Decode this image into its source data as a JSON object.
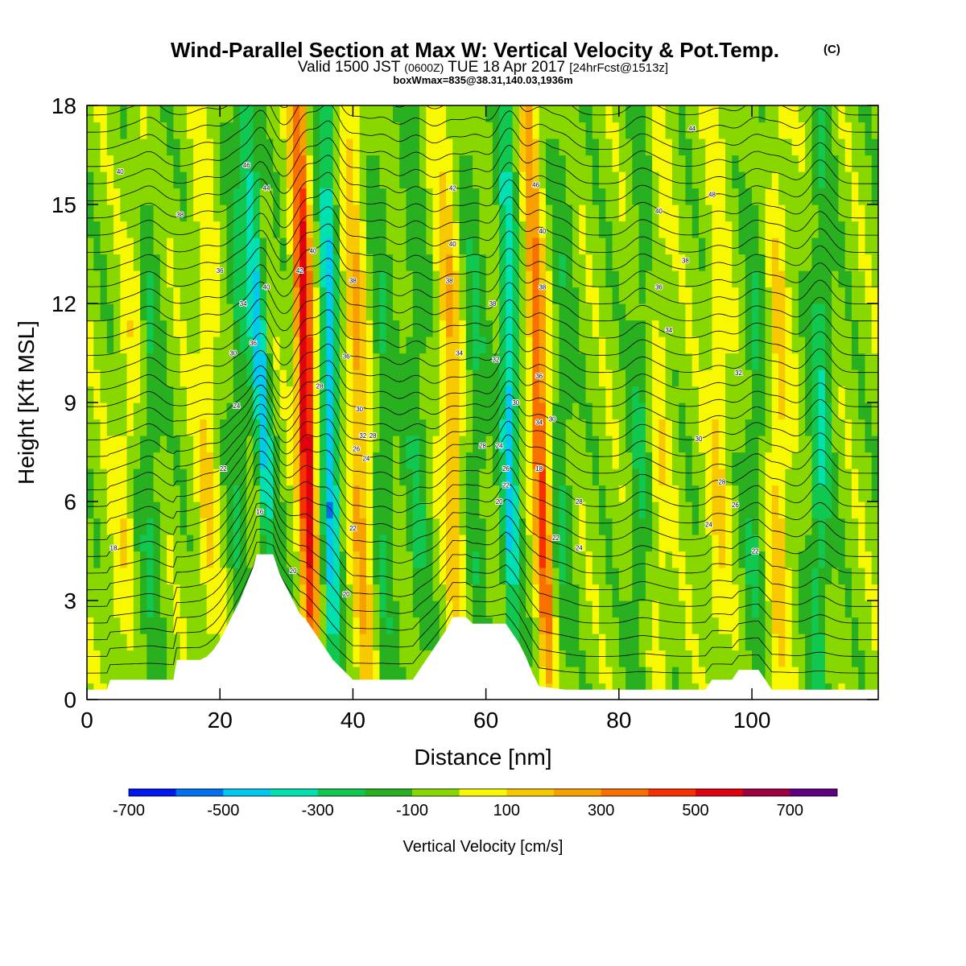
{
  "chart_data": {
    "type": "heatmap",
    "title": "Wind-Parallel Section at Max W: Vertical Velocity & Pot.Temp.",
    "title_mark": "(C)",
    "subtitle_main": "Valid 1500 JST",
    "subtitle_zulu": "(0600Z)",
    "subtitle_date": "TUE 18 Apr 2017",
    "subtitle_fcst": "[24hrFcst@1513z]",
    "subtitle2": "boxWmax=835@38.31,140.03,1936m",
    "xlabel": "Distance [nm]",
    "ylabel": "Height [Kft MSL]",
    "xlim": [
      0,
      119
    ],
    "ylim": [
      0,
      18
    ],
    "x_ticks": [
      0,
      20,
      40,
      60,
      80,
      100
    ],
    "y_ticks": [
      0,
      3,
      6,
      9,
      12,
      15,
      18
    ],
    "colorbar": {
      "label": "Vertical Velocity [cm/s]",
      "bounds": [
        -700,
        800
      ],
      "tick_labels": [
        -700,
        -500,
        -300,
        -100,
        100,
        300,
        500,
        700
      ],
      "colors": [
        "#0018f0",
        "#0070f0",
        "#00c8f0",
        "#00e0b0",
        "#10c850",
        "#28b020",
        "#88d800",
        "#f8f800",
        "#f8c800",
        "#f8a000",
        "#f87000",
        "#f83000",
        "#e00010",
        "#a00040",
        "#600080"
      ]
    },
    "background_level": -50,
    "updraft_bands": [
      {
        "x_low": 34.0,
        "x_high": 31.8,
        "peak": 700
      },
      {
        "x_low": 69.5,
        "x_high": 66.5,
        "peak": 500
      },
      {
        "x_low": 42.0,
        "x_high": 39.5,
        "peak": 300
      },
      {
        "x_low": 18.5,
        "x_high": 17.5,
        "peak": 150
      },
      {
        "x_low": 56.0,
        "x_high": 53.5,
        "peak": 250
      },
      {
        "x_low": 4.0,
        "x_high": 8.5,
        "peak": 120
      },
      {
        "x_low": 86.0,
        "x_high": 86.0,
        "peak": 120
      },
      {
        "x_low": 95.0,
        "x_high": 95.0,
        "peak": 150
      },
      {
        "x_low": 104.0,
        "x_high": 104.0,
        "peak": 200
      }
    ],
    "downdraft_bands": [
      {
        "x_low": 28.5,
        "x_high": 24.0,
        "peak": -400
      },
      {
        "x_low": 37.0,
        "x_high": 36.0,
        "peak": -450
      },
      {
        "x_low": 64.0,
        "x_high": 63.0,
        "peak": -400
      },
      {
        "x_low": 23.0,
        "x_high": 22.5,
        "peak": -150
      },
      {
        "x_low": 45.0,
        "x_high": 44.0,
        "peak": -150
      },
      {
        "x_low": 50.0,
        "x_high": 49.0,
        "peak": -150
      },
      {
        "x_low": 59.0,
        "x_high": 58.0,
        "peak": -150
      },
      {
        "x_low": 71.0,
        "x_high": 72.0,
        "peak": -150
      },
      {
        "x_low": 83.0,
        "x_high": 83.5,
        "peak": -150
      },
      {
        "x_low": 100.0,
        "x_high": 101.0,
        "peak": -150
      },
      {
        "x_low": 110.0,
        "x_high": 110.5,
        "peak": -250
      },
      {
        "x_low": 9.5,
        "x_high": 9.5,
        "peak": -150
      }
    ],
    "terrain_kft": [
      [
        0,
        0.3
      ],
      [
        3,
        0.3
      ],
      [
        3.5,
        0.6
      ],
      [
        13,
        0.6
      ],
      [
        13.5,
        1.2
      ],
      [
        17,
        1.2
      ],
      [
        18,
        1.3
      ],
      [
        19,
        1.5
      ],
      [
        20,
        1.8
      ],
      [
        21,
        2.2
      ],
      [
        22,
        2.6
      ],
      [
        23,
        3.0
      ],
      [
        24,
        3.5
      ],
      [
        25,
        4.0
      ],
      [
        25.5,
        4.4
      ],
      [
        28,
        4.4
      ],
      [
        29,
        3.8
      ],
      [
        30,
        3.4
      ],
      [
        31,
        3.0
      ],
      [
        32,
        2.6
      ],
      [
        33,
        2.4
      ],
      [
        34,
        2.1
      ],
      [
        35,
        1.8
      ],
      [
        36,
        1.5
      ],
      [
        37,
        1.2
      ],
      [
        38,
        1.0
      ],
      [
        39,
        0.8
      ],
      [
        40,
        0.6
      ],
      [
        49,
        0.6
      ],
      [
        50,
        0.9
      ],
      [
        51,
        1.2
      ],
      [
        52,
        1.5
      ],
      [
        53,
        1.8
      ],
      [
        54,
        2.1
      ],
      [
        55,
        2.5
      ],
      [
        57,
        2.5
      ],
      [
        58,
        2.3
      ],
      [
        63,
        2.3
      ],
      [
        64,
        2.0
      ],
      [
        65,
        1.7
      ],
      [
        66,
        1.3
      ],
      [
        67,
        0.8
      ],
      [
        68,
        0.4
      ],
      [
        72,
        0.3
      ],
      [
        93,
        0.3
      ],
      [
        94,
        0.6
      ],
      [
        97,
        0.6
      ],
      [
        98,
        0.9
      ],
      [
        101,
        0.9
      ],
      [
        102,
        0.6
      ],
      [
        103,
        0.3
      ],
      [
        119,
        0.3
      ]
    ],
    "theta_contour_labels": [
      {
        "x": 5.0,
        "y": 16.0,
        "v": "40"
      },
      {
        "x": 14.0,
        "y": 14.7,
        "v": "38"
      },
      {
        "x": 20.0,
        "y": 13.0,
        "v": "36"
      },
      {
        "x": 23.5,
        "y": 12.0,
        "v": "34"
      },
      {
        "x": 22.0,
        "y": 10.5,
        "v": "30"
      },
      {
        "x": 22.5,
        "y": 8.9,
        "v": "24"
      },
      {
        "x": 20.5,
        "y": 7.0,
        "v": "22"
      },
      {
        "x": 26.0,
        "y": 5.7,
        "v": "16"
      },
      {
        "x": 4.0,
        "y": 4.6,
        "v": "18"
      },
      {
        "x": 24.0,
        "y": 16.2,
        "v": "46"
      },
      {
        "x": 27.0,
        "y": 15.5,
        "v": "44"
      },
      {
        "x": 34.0,
        "y": 13.6,
        "v": "40"
      },
      {
        "x": 32.0,
        "y": 13.0,
        "v": "42"
      },
      {
        "x": 27.0,
        "y": 12.5,
        "v": "40"
      },
      {
        "x": 25.0,
        "y": 10.8,
        "v": "36"
      },
      {
        "x": 40.0,
        "y": 12.7,
        "v": "38"
      },
      {
        "x": 39.0,
        "y": 10.4,
        "v": "36"
      },
      {
        "x": 35.0,
        "y": 9.5,
        "v": "28"
      },
      {
        "x": 41.0,
        "y": 8.8,
        "v": "30"
      },
      {
        "x": 41.5,
        "y": 8.0,
        "v": "32"
      },
      {
        "x": 43.0,
        "y": 8.0,
        "v": "28"
      },
      {
        "x": 40.5,
        "y": 7.6,
        "v": "26"
      },
      {
        "x": 42.0,
        "y": 7.3,
        "v": "24"
      },
      {
        "x": 40.0,
        "y": 5.2,
        "v": "22"
      },
      {
        "x": 39.0,
        "y": 3.2,
        "v": "20"
      },
      {
        "x": 31.0,
        "y": 3.9,
        "v": "20"
      },
      {
        "x": 55.0,
        "y": 15.5,
        "v": "42"
      },
      {
        "x": 55.0,
        "y": 13.8,
        "v": "40"
      },
      {
        "x": 54.5,
        "y": 12.7,
        "v": "38"
      },
      {
        "x": 56.0,
        "y": 10.5,
        "v": "34"
      },
      {
        "x": 61.0,
        "y": 12.0,
        "v": "38"
      },
      {
        "x": 61.5,
        "y": 10.3,
        "v": "32"
      },
      {
        "x": 64.5,
        "y": 9.0,
        "v": "30"
      },
      {
        "x": 59.5,
        "y": 7.7,
        "v": "28"
      },
      {
        "x": 62.0,
        "y": 7.7,
        "v": "24"
      },
      {
        "x": 63.0,
        "y": 7.0,
        "v": "26"
      },
      {
        "x": 63.0,
        "y": 6.5,
        "v": "22"
      },
      {
        "x": 62.0,
        "y": 6.0,
        "v": "20"
      },
      {
        "x": 67.5,
        "y": 15.6,
        "v": "46"
      },
      {
        "x": 68.5,
        "y": 14.2,
        "v": "40"
      },
      {
        "x": 68.5,
        "y": 12.5,
        "v": "38"
      },
      {
        "x": 68.0,
        "y": 9.8,
        "v": "36"
      },
      {
        "x": 68.0,
        "y": 8.4,
        "v": "34"
      },
      {
        "x": 70.0,
        "y": 8.5,
        "v": "30"
      },
      {
        "x": 68.0,
        "y": 7.0,
        "v": "18"
      },
      {
        "x": 70.5,
        "y": 4.9,
        "v": "22"
      },
      {
        "x": 74.0,
        "y": 4.6,
        "v": "24"
      },
      {
        "x": 74.0,
        "y": 6.0,
        "v": "28"
      },
      {
        "x": 91.0,
        "y": 17.3,
        "v": "44"
      },
      {
        "x": 94.0,
        "y": 15.3,
        "v": "48"
      },
      {
        "x": 86.0,
        "y": 14.8,
        "v": "40"
      },
      {
        "x": 90.0,
        "y": 13.3,
        "v": "38"
      },
      {
        "x": 86.0,
        "y": 12.5,
        "v": "36"
      },
      {
        "x": 87.5,
        "y": 11.2,
        "v": "34"
      },
      {
        "x": 98.0,
        "y": 9.9,
        "v": "32"
      },
      {
        "x": 92.0,
        "y": 7.9,
        "v": "30"
      },
      {
        "x": 95.5,
        "y": 6.6,
        "v": "28"
      },
      {
        "x": 97.5,
        "y": 5.9,
        "v": "26"
      },
      {
        "x": 93.5,
        "y": 5.3,
        "v": "24"
      },
      {
        "x": 100.5,
        "y": 4.5,
        "v": "22"
      }
    ]
  }
}
